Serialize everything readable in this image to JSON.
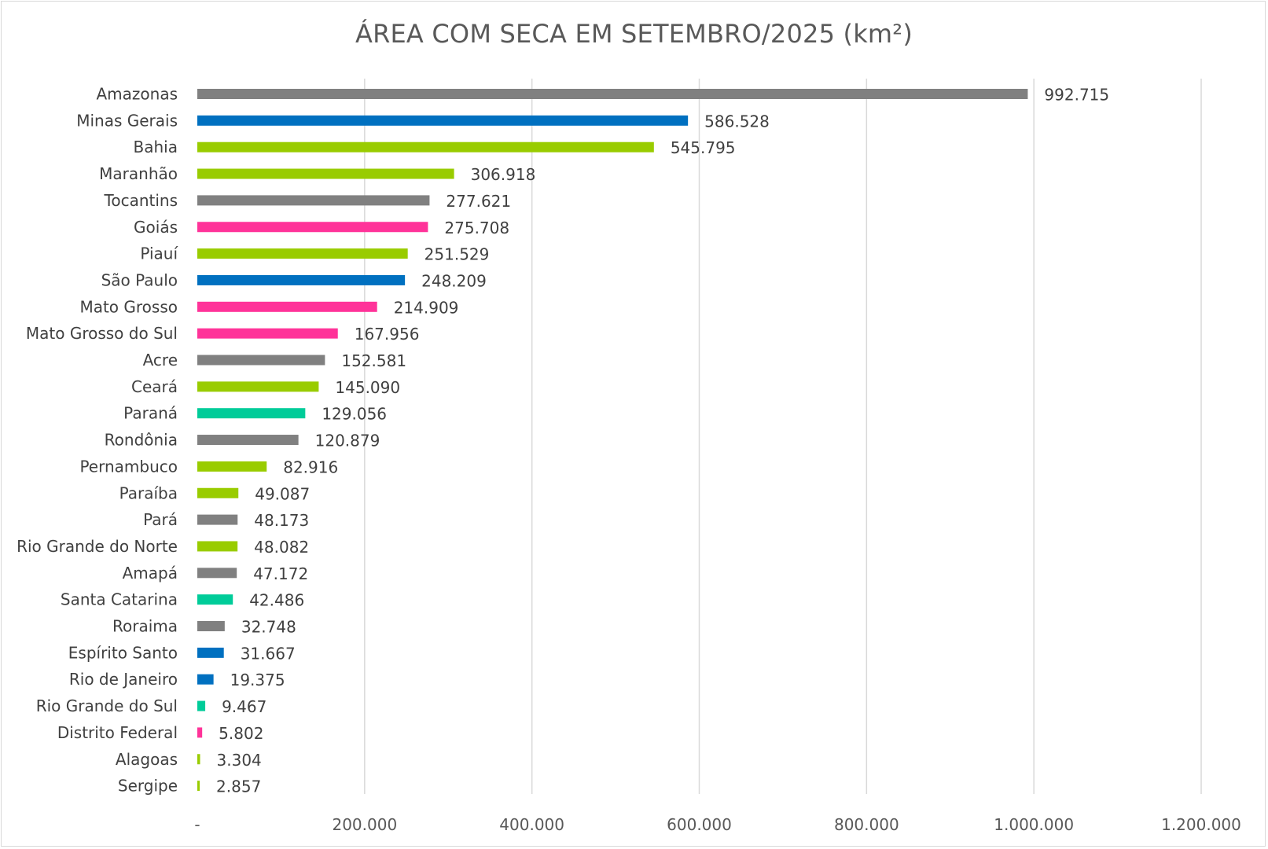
{
  "chart_data": {
    "type": "bar",
    "orientation": "horizontal",
    "title": "ÁREA COM SECA EM SETEMBRO/2025 (km²)",
    "xlabel": "",
    "ylabel": "",
    "xlim": [
      0,
      1200000
    ],
    "grid": true,
    "legend": "none",
    "ticks": [
      {
        "value": 0,
        "label": "-"
      },
      {
        "value": 200000,
        "label": "200.000"
      },
      {
        "value": 400000,
        "label": "400.000"
      },
      {
        "value": 600000,
        "label": "600.000"
      },
      {
        "value": 800000,
        "label": "800.000"
      },
      {
        "value": 1000000,
        "label": "1.000.000"
      },
      {
        "value": 1200000,
        "label": "1.200.000"
      }
    ],
    "colors": {
      "gray": "#808080",
      "blue": "#0070c0",
      "lime": "#99cc00",
      "pink": "#ff3399",
      "teal": "#00cc99"
    },
    "bars": [
      {
        "category": "Amazonas",
        "value": 992715,
        "label": "992.715",
        "color": "gray"
      },
      {
        "category": "Minas Gerais",
        "value": 586528,
        "label": "586.528",
        "color": "blue"
      },
      {
        "category": "Bahia",
        "value": 545795,
        "label": "545.795",
        "color": "lime"
      },
      {
        "category": "Maranhão",
        "value": 306918,
        "label": "306.918",
        "color": "lime"
      },
      {
        "category": "Tocantins",
        "value": 277621,
        "label": "277.621",
        "color": "gray"
      },
      {
        "category": "Goiás",
        "value": 275708,
        "label": "275.708",
        "color": "pink"
      },
      {
        "category": "Piauí",
        "value": 251529,
        "label": "251.529",
        "color": "lime"
      },
      {
        "category": "São Paulo",
        "value": 248209,
        "label": "248.209",
        "color": "blue"
      },
      {
        "category": "Mato Grosso",
        "value": 214909,
        "label": "214.909",
        "color": "pink"
      },
      {
        "category": "Mato Grosso do Sul",
        "value": 167956,
        "label": "167.956",
        "color": "pink"
      },
      {
        "category": "Acre",
        "value": 152581,
        "label": "152.581",
        "color": "gray"
      },
      {
        "category": "Ceará",
        "value": 145090,
        "label": "145.090",
        "color": "lime"
      },
      {
        "category": "Paraná",
        "value": 129056,
        "label": "129.056",
        "color": "teal"
      },
      {
        "category": "Rondônia",
        "value": 120879,
        "label": "120.879",
        "color": "gray"
      },
      {
        "category": "Pernambuco",
        "value": 82916,
        "label": "82.916",
        "color": "lime"
      },
      {
        "category": "Paraíba",
        "value": 49087,
        "label": "49.087",
        "color": "lime"
      },
      {
        "category": "Pará",
        "value": 48173,
        "label": "48.173",
        "color": "gray"
      },
      {
        "category": "Rio Grande do Norte",
        "value": 48082,
        "label": "48.082",
        "color": "lime"
      },
      {
        "category": "Amapá",
        "value": 47172,
        "label": "47.172",
        "color": "gray"
      },
      {
        "category": "Santa Catarina",
        "value": 42486,
        "label": "42.486",
        "color": "teal"
      },
      {
        "category": "Roraima",
        "value": 32748,
        "label": "32.748",
        "color": "gray"
      },
      {
        "category": "Espírito Santo",
        "value": 31667,
        "label": "31.667",
        "color": "blue"
      },
      {
        "category": "Rio de Janeiro",
        "value": 19375,
        "label": "19.375",
        "color": "blue"
      },
      {
        "category": "Rio Grande do Sul",
        "value": 9467,
        "label": "9.467",
        "color": "teal"
      },
      {
        "category": "Distrito Federal",
        "value": 5802,
        "label": "5.802",
        "color": "pink"
      },
      {
        "category": "Alagoas",
        "value": 3304,
        "label": "3.304",
        "color": "lime"
      },
      {
        "category": "Sergipe",
        "value": 2857,
        "label": "2.857",
        "color": "lime"
      }
    ]
  }
}
